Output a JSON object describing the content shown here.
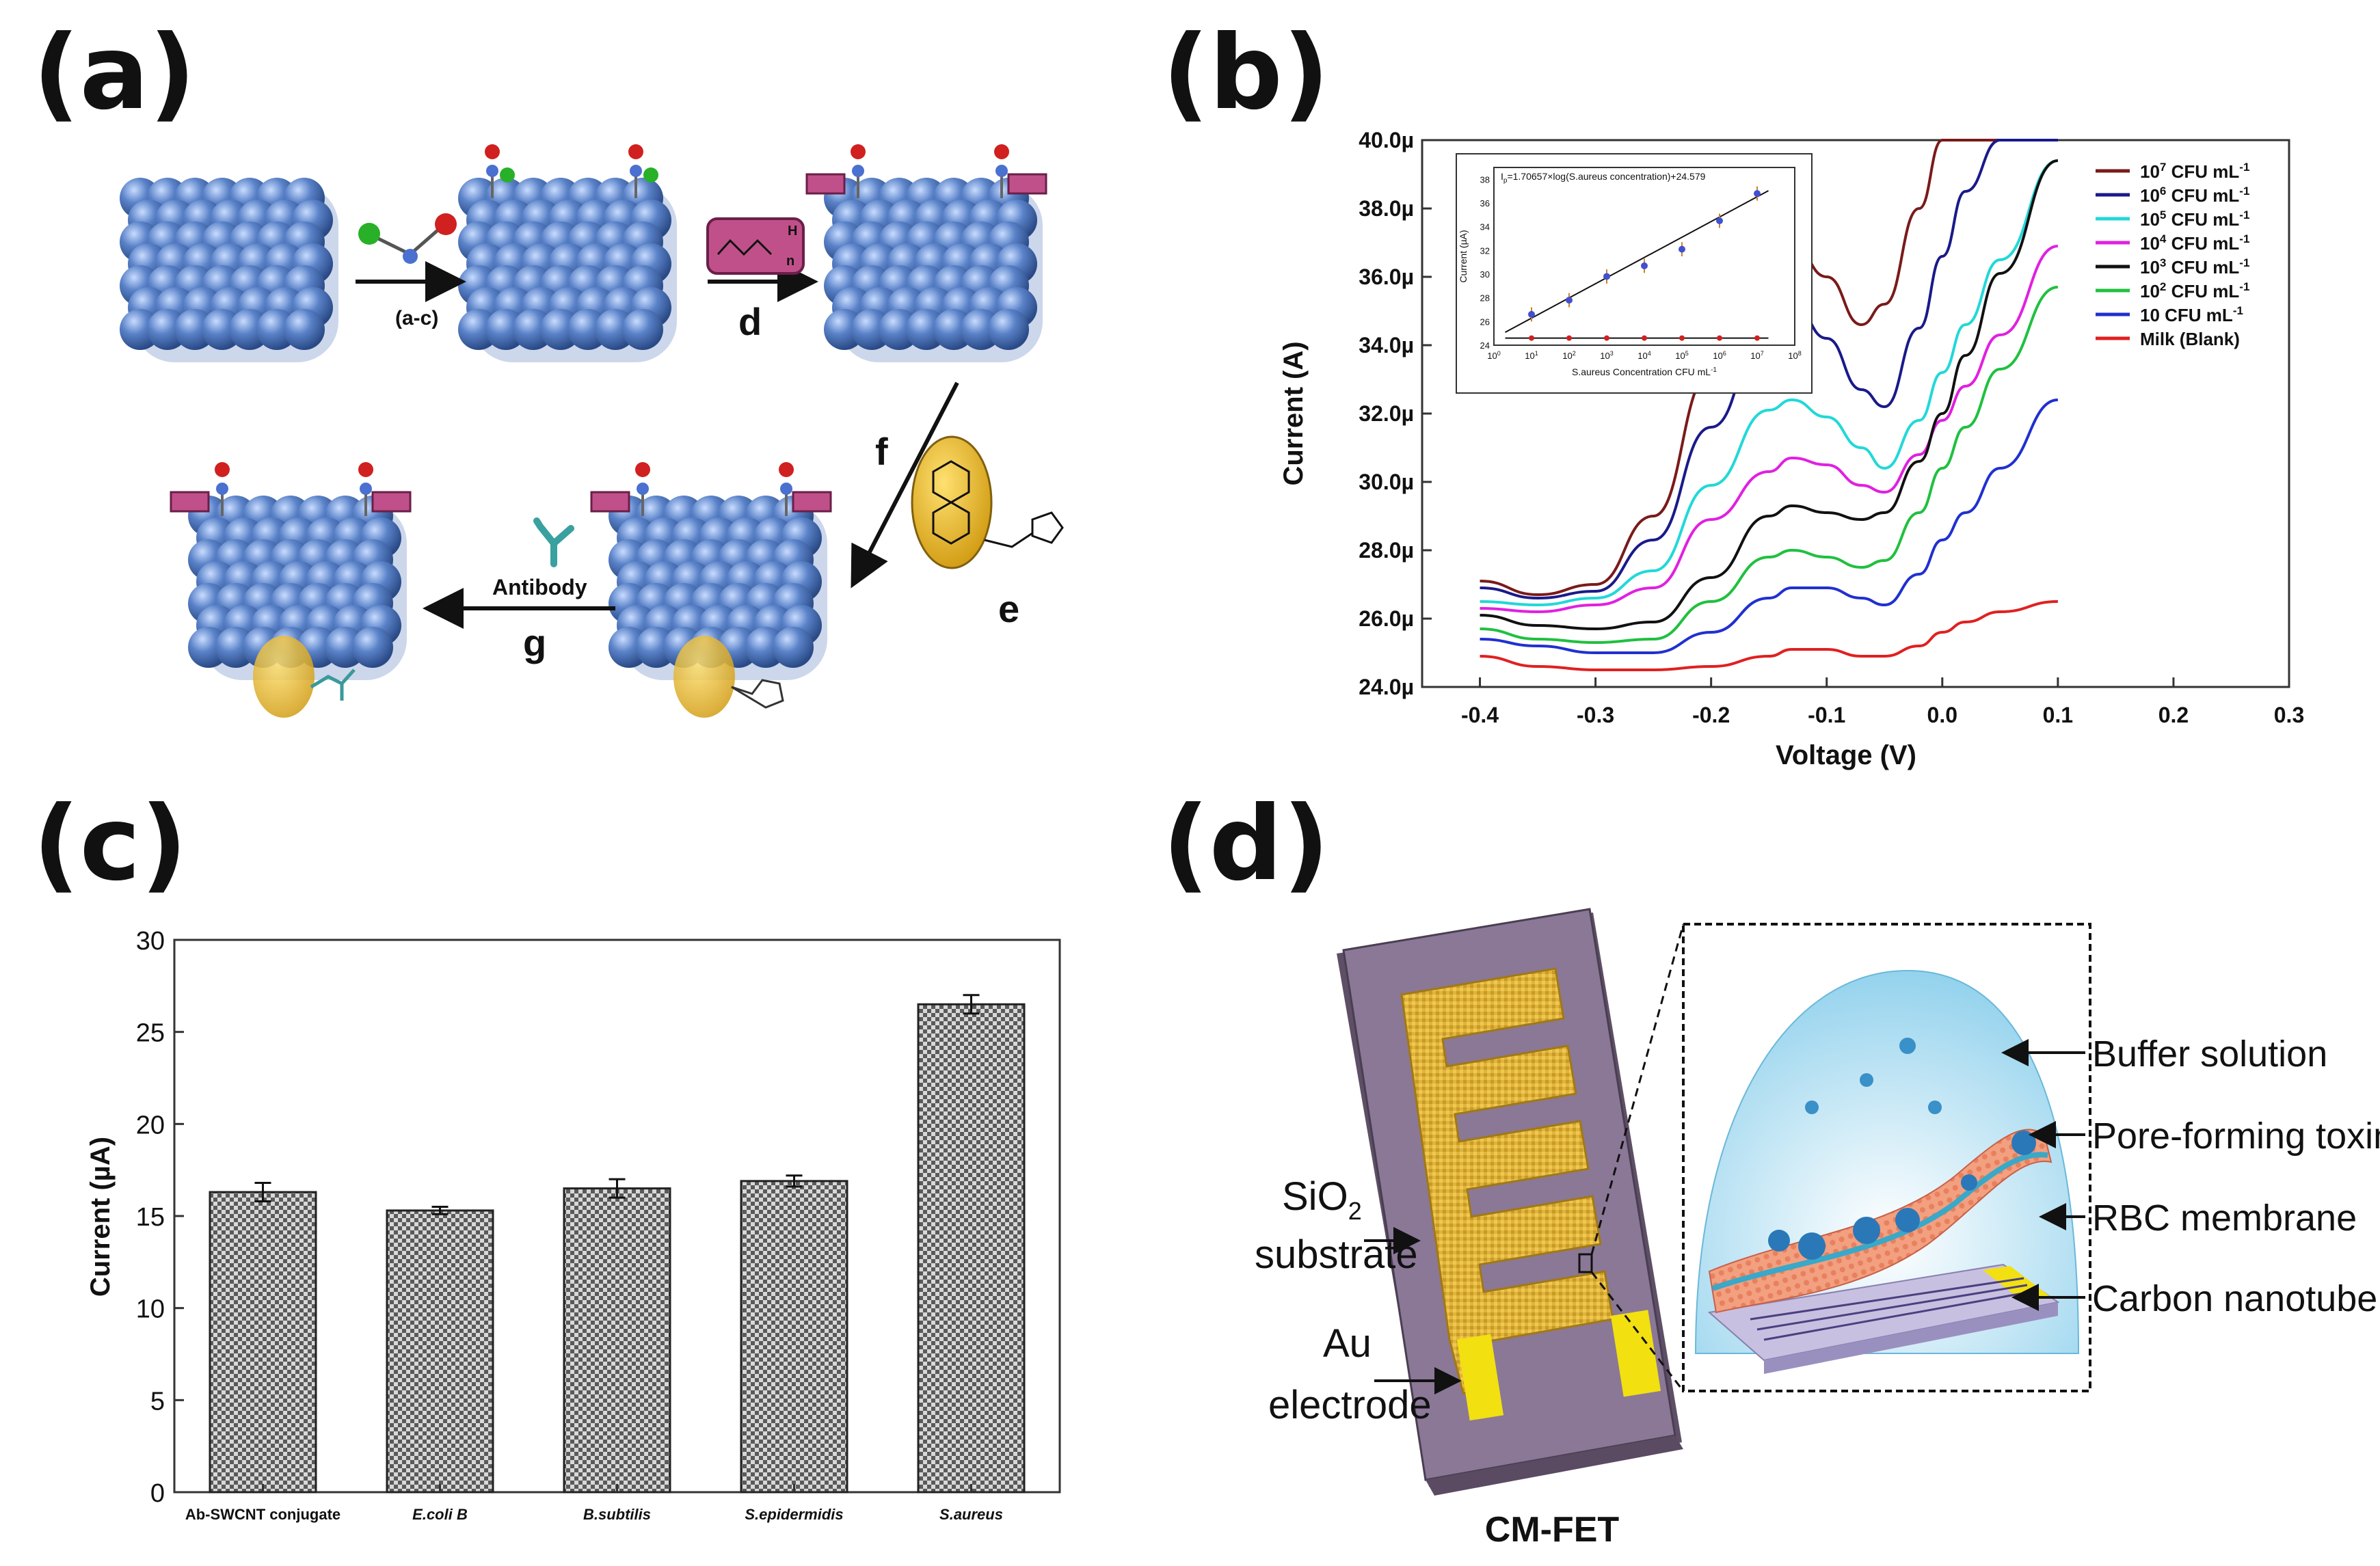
{
  "panels": {
    "a": "(a)",
    "b": "(b)",
    "c": "(c)",
    "d": "(d)"
  },
  "scheme_a": {
    "steps": {
      "ac": "(a-c)",
      "d": "d",
      "f": "f",
      "e": "e",
      "g": "g"
    },
    "antibody_label": "Antibody",
    "peg_subscript": "n",
    "peg_h": "H"
  },
  "colors": {
    "cnt_blue": "#4a6fb5",
    "pink": "#c0508a",
    "gold": "#e8b820",
    "purple": "#8a7896",
    "au": "#f2e011"
  },
  "chart_data": [
    {
      "id": "b",
      "type": "line",
      "title": "",
      "xlabel": "Voltage (V)",
      "ylabel": "Current (A)",
      "xlim": [
        -0.45,
        0.3
      ],
      "ylim": [
        24.0,
        40.0
      ],
      "x_ticks": [
        "-0.4",
        "-0.3",
        "-0.2",
        "-0.1",
        "0.0",
        "0.1",
        "0.2",
        "0.3"
      ],
      "y_ticks": [
        "24.0µ",
        "26.0µ",
        "28.0µ",
        "30.0µ",
        "32.0µ",
        "34.0µ",
        "36.0µ",
        "38.0µ",
        "40.0µ"
      ],
      "x": [
        -0.4,
        -0.35,
        -0.3,
        -0.25,
        -0.2,
        -0.15,
        -0.13,
        -0.1,
        -0.07,
        -0.05,
        -0.02,
        0.0,
        0.02,
        0.05,
        0.1
      ],
      "legend": {
        "position": "top-right",
        "entries": [
          {
            "base": "10",
            "sup": "7",
            "unit": " CFU mL",
            "unit_sup": "-1",
            "color": "#7a1a1a"
          },
          {
            "base": "10",
            "sup": "6",
            "unit": "  CFU mL",
            "unit_sup": "-1",
            "color": "#1a1a8a"
          },
          {
            "base": "10",
            "sup": "5",
            "unit": " CFU mL",
            "unit_sup": "-1",
            "color": "#22d8d8"
          },
          {
            "base": "10",
            "sup": "4",
            "unit": " CFU mL",
            "unit_sup": "-1",
            "color": "#e020e0"
          },
          {
            "base": "10",
            "sup": "3",
            "unit": " CFU mL",
            "unit_sup": "-1",
            "color": "#111111"
          },
          {
            "base": "10",
            "sup": "2",
            "unit": " CFU mL",
            "unit_sup": "-1",
            "color": "#20c040"
          },
          {
            "base": "10",
            "sup": "",
            "unit": "  CFU mL",
            "unit_sup": "-1",
            "color": "#2030d0"
          },
          {
            "base": "Milk (Blank)",
            "sup": "",
            "unit": "",
            "unit_sup": "",
            "color": "#e02020"
          }
        ]
      },
      "series": [
        {
          "name": "10^7 CFU mL-1",
          "color": "#7a1a1a",
          "values": [
            27.1,
            26.7,
            27.0,
            29.0,
            33.2,
            36.8,
            37.0,
            36.0,
            34.6,
            35.2,
            38.0,
            40.0,
            40.0,
            40.0,
            40.0
          ]
        },
        {
          "name": "10^6 CFU mL-1",
          "color": "#1a1a8a",
          "values": [
            26.9,
            26.6,
            26.8,
            28.3,
            31.6,
            34.8,
            35.3,
            34.2,
            32.7,
            32.2,
            34.5,
            36.6,
            38.5,
            40.0,
            40.0
          ]
        },
        {
          "name": "10^5 CFU mL-1",
          "color": "#22d8d8",
          "values": [
            26.5,
            26.4,
            26.6,
            27.4,
            29.9,
            32.1,
            32.4,
            31.9,
            31.0,
            30.4,
            31.8,
            33.2,
            34.6,
            36.5,
            39.4
          ]
        },
        {
          "name": "10^4 CFU mL-1",
          "color": "#e020e0",
          "values": [
            26.3,
            26.2,
            26.4,
            26.9,
            28.9,
            30.3,
            30.7,
            30.5,
            29.9,
            29.7,
            30.8,
            31.8,
            32.8,
            34.3,
            36.9
          ]
        },
        {
          "name": "10^3 CFU mL-1",
          "color": "#111111",
          "values": [
            26.1,
            25.8,
            25.7,
            25.9,
            27.2,
            29.0,
            29.3,
            29.1,
            28.9,
            29.1,
            30.6,
            32.0,
            33.7,
            36.1,
            39.4
          ]
        },
        {
          "name": "10^2 CFU mL-1",
          "color": "#20c040",
          "values": [
            25.7,
            25.4,
            25.3,
            25.4,
            26.5,
            27.8,
            28.0,
            27.8,
            27.5,
            27.7,
            29.1,
            30.4,
            31.6,
            33.3,
            35.7
          ]
        },
        {
          "name": "10 CFU mL-1",
          "color": "#2030d0",
          "values": [
            25.4,
            25.2,
            25.0,
            25.0,
            25.6,
            26.6,
            26.9,
            26.9,
            26.6,
            26.4,
            27.3,
            28.3,
            29.1,
            30.4,
            32.4
          ]
        },
        {
          "name": "Milk (Blank)",
          "color": "#e02020",
          "values": [
            24.9,
            24.6,
            24.5,
            24.5,
            24.6,
            24.9,
            25.1,
            25.1,
            24.9,
            24.9,
            25.2,
            25.6,
            25.9,
            26.2,
            26.5
          ]
        }
      ],
      "inset": {
        "type": "scatter",
        "equation": "I",
        "equation_sub": "p",
        "equation_rest": "=1.70657×log(S.aureus concentration)+24.579",
        "xlabel": "S.aureus Concentration CFU mL",
        "xlabel_sup": "-1",
        "ylabel": "Current (µA)",
        "xlim": [
          0,
          8
        ],
        "ylim": [
          24,
          39
        ],
        "y_ticks": [
          "24",
          "26",
          "28",
          "30",
          "32",
          "34",
          "36",
          "38"
        ],
        "x_ticks": [
          {
            "base": "10",
            "sup": "0"
          },
          {
            "base": "10",
            "sup": "1"
          },
          {
            "base": "10",
            "sup": "2"
          },
          {
            "base": "10",
            "sup": "3"
          },
          {
            "base": "10",
            "sup": "4"
          },
          {
            "base": "10",
            "sup": "5"
          },
          {
            "base": "10",
            "sup": "6"
          },
          {
            "base": "10",
            "sup": "7"
          },
          {
            "base": "10",
            "sup": "8"
          }
        ],
        "fit": {
          "slope": 1.70657,
          "intercept": 24.579
        },
        "points_x": [
          1,
          2,
          3,
          4,
          5,
          6,
          7
        ],
        "points_y": [
          26.6,
          27.8,
          29.8,
          30.7,
          32.1,
          34.5,
          36.8
        ],
        "blank_y": [
          24.6,
          24.6,
          24.6,
          24.6,
          24.6,
          24.6,
          24.6
        ]
      }
    },
    {
      "id": "c",
      "type": "bar",
      "title": "",
      "xlabel": "",
      "ylabel": "Current (µA)",
      "ylim": [
        0,
        30
      ],
      "y_ticks": [
        "0",
        "5",
        "10",
        "15",
        "20",
        "25",
        "30"
      ],
      "categories": [
        "Ab-SWCNT conjugate",
        "E.coli B",
        "B.subtilis",
        "S.epidermidis",
        "S.aureus"
      ],
      "values": [
        16.3,
        15.3,
        16.5,
        16.9,
        26.5
      ],
      "errors": [
        0.5,
        0.2,
        0.5,
        0.3,
        0.5
      ]
    }
  ],
  "diagram_d": {
    "sio2_base": "SiO",
    "sio2_sub": "2",
    "substrate": "substrate",
    "au": "Au",
    "electrode": "electrode",
    "device": "CM-FET",
    "labels": [
      "Buffer solution",
      "Pore-forming toxin",
      "RBC membrane",
      "Carbon nanotube"
    ]
  }
}
